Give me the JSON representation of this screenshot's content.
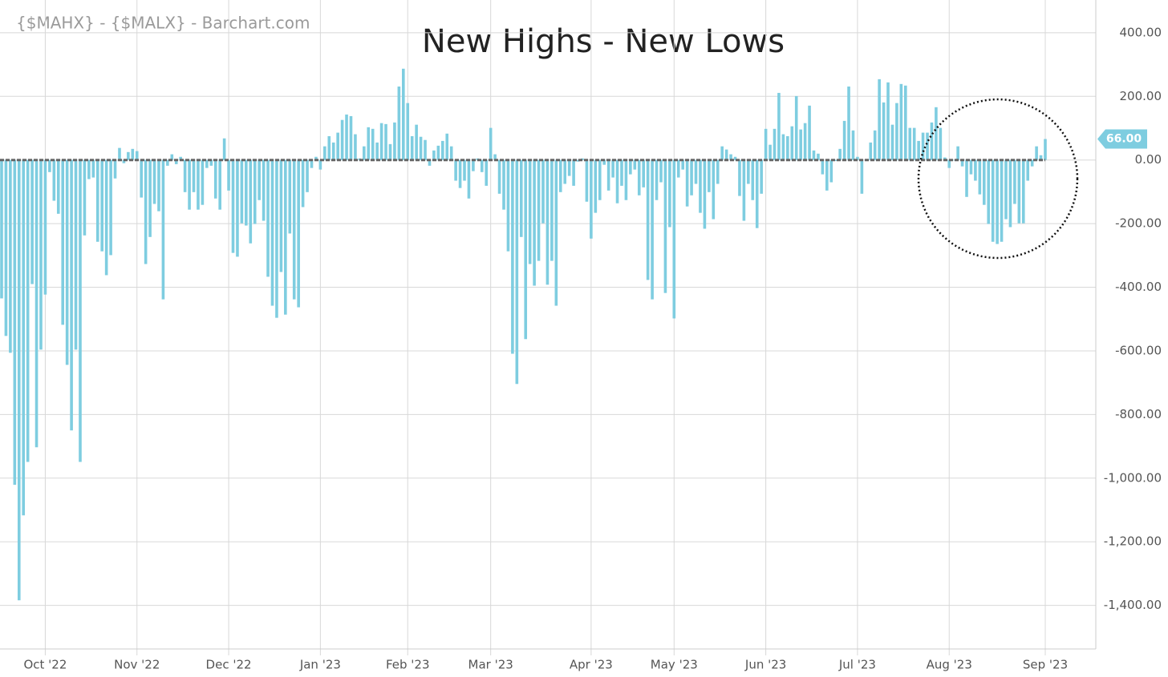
{
  "chart_data": {
    "type": "bar",
    "title": "New Highs - New Lows",
    "subtitle": "{$MAHX} - {$MALX} - Barchart.com",
    "color": "#7ecde0",
    "grid": true,
    "ylim": [
      -1537,
      503
    ],
    "yticks": [
      {
        "value": 400,
        "label": "400.00"
      },
      {
        "value": 200,
        "label": "200.00"
      },
      {
        "value": 0,
        "label": "0.00"
      },
      {
        "value": -200,
        "label": "-200.00"
      },
      {
        "value": -400,
        "label": "-400.00"
      },
      {
        "value": -600,
        "label": "-600.00"
      },
      {
        "value": -800,
        "label": "-800.00"
      },
      {
        "value": -1000,
        "label": "-1,000.00"
      },
      {
        "value": -1200,
        "label": "-1,200.00"
      },
      {
        "value": -1400,
        "label": "-1,400.00"
      }
    ],
    "last_value": {
      "value": 66,
      "label": "66.00"
    },
    "categories": [
      null,
      null,
      null,
      null,
      null,
      null,
      null,
      null,
      null,
      null,
      "Oct '22",
      null,
      null,
      null,
      null,
      null,
      null,
      null,
      null,
      null,
      null,
      null,
      null,
      null,
      null,
      null,
      null,
      null,
      null,
      null,
      null,
      "Nov '22",
      null,
      null,
      null,
      null,
      null,
      null,
      null,
      null,
      null,
      null,
      null,
      null,
      null,
      null,
      null,
      null,
      null,
      null,
      null,
      null,
      "Dec '22",
      null,
      null,
      null,
      null,
      null,
      null,
      null,
      null,
      null,
      null,
      null,
      null,
      null,
      null,
      null,
      null,
      null,
      null,
      null,
      null,
      "Jan '23",
      null,
      null,
      null,
      null,
      null,
      null,
      null,
      null,
      null,
      null,
      null,
      null,
      null,
      null,
      null,
      null,
      null,
      null,
      null,
      "Feb '23",
      null,
      null,
      null,
      null,
      null,
      null,
      null,
      null,
      null,
      null,
      null,
      null,
      null,
      null,
      null,
      null,
      null,
      null,
      "Mar '23",
      null,
      null,
      null,
      null,
      null,
      null,
      null,
      null,
      null,
      null,
      null,
      null,
      null,
      null,
      null,
      null,
      null,
      null,
      null,
      null,
      null,
      null,
      "Apr '23",
      null,
      null,
      null,
      null,
      null,
      null,
      null,
      null,
      null,
      null,
      null,
      null,
      null,
      null,
      null,
      null,
      null,
      null,
      "May '23",
      null,
      null,
      null,
      null,
      null,
      null,
      null,
      null,
      null,
      null,
      null,
      null,
      null,
      null,
      null,
      null,
      null,
      null,
      null,
      null,
      "Jun '23",
      null,
      null,
      null,
      null,
      null,
      null,
      null,
      null,
      null,
      null,
      null,
      null,
      null,
      null,
      null,
      null,
      null,
      null,
      null,
      null,
      "Jul '23",
      null,
      null,
      null,
      null,
      null,
      null,
      null,
      null,
      null,
      null,
      null,
      null,
      null,
      null,
      null,
      null,
      null,
      null,
      null,
      null,
      "Aug '23",
      null,
      null,
      null,
      null,
      null,
      null,
      null,
      null,
      null,
      null,
      null,
      null,
      null,
      null,
      null,
      null,
      null,
      null,
      null,
      null,
      null,
      "Sep '23"
    ],
    "values": [
      -435,
      -553,
      -606,
      -1021,
      -1384,
      -1117,
      -949,
      -390,
      -903,
      -596,
      -423,
      -38,
      -128,
      -169,
      -518,
      -644,
      -850,
      -596,
      -949,
      -237,
      -60,
      -55,
      -257,
      -287,
      -362,
      -299,
      -58,
      38,
      -10,
      25,
      35,
      28,
      -118,
      -327,
      -242,
      -138,
      -161,
      -438,
      -18,
      18,
      -13,
      10,
      -101,
      -156,
      -101,
      -156,
      -141,
      -25,
      -18,
      -121,
      -156,
      68,
      -96,
      -292,
      -304,
      -199,
      -206,
      -262,
      -201,
      -126,
      -191,
      -367,
      -458,
      -496,
      -352,
      -486,
      -231,
      -438,
      -463,
      -148,
      -101,
      -25,
      10,
      -30,
      43,
      75,
      55,
      86,
      126,
      143,
      138,
      81,
      5,
      43,
      103,
      98,
      55,
      116,
      113,
      50,
      118,
      231,
      287,
      179,
      75,
      111,
      73,
      63,
      -18,
      30,
      45,
      60,
      83,
      43,
      -65,
      -88,
      -65,
      -121,
      -35,
      5,
      -38,
      -81,
      101,
      18,
      -106,
      -156,
      -287,
      -609,
      -704,
      -242,
      -563,
      -327,
      -395,
      -317,
      -199,
      -392,
      -317,
      -458,
      -101,
      -75,
      -50,
      -81,
      -5,
      5,
      -131,
      -247,
      -166,
      -126,
      -15,
      -96,
      -55,
      -136,
      -81,
      -126,
      -45,
      -30,
      -111,
      -86,
      -377,
      -438,
      -126,
      -70,
      -418,
      -211,
      -498,
      -55,
      -30,
      -146,
      -111,
      -75,
      -166,
      -216,
      -101,
      -186,
      -75,
      43,
      33,
      18,
      10,
      -113,
      -191,
      -75,
      -126,
      -214,
      -106,
      98,
      48,
      98,
      211,
      81,
      75,
      106,
      201,
      96,
      116,
      171,
      30,
      20,
      -45,
      -96,
      -70,
      -3,
      35,
      123,
      231,
      93,
      10,
      -106,
      0,
      55,
      93,
      254,
      181,
      244,
      111,
      179,
      239,
      234,
      101,
      101,
      60,
      86,
      86,
      118,
      166,
      101,
      8,
      -25,
      0,
      43,
      -20,
      -116,
      -45,
      -65,
      -108,
      -141,
      -201,
      -257,
      -264,
      -257,
      -186,
      -211,
      -138,
      -199,
      -199,
      -65,
      -20,
      43,
      15,
      66
    ]
  }
}
